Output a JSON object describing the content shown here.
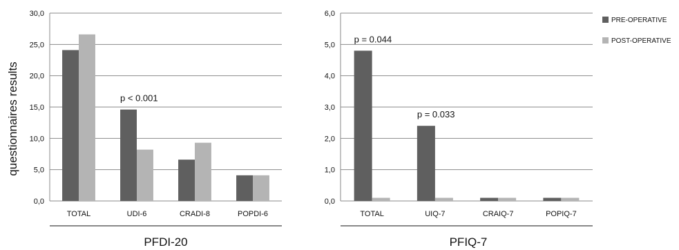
{
  "ylabel": "questionnaires results",
  "colors": {
    "pre": "#5f5f5f",
    "post": "#b4b4b4",
    "grid": "#8a8a8a"
  },
  "legend": [
    "PRE-OPERATIVE",
    "POST-OPERATIVE"
  ],
  "chart_data": [
    {
      "type": "bar",
      "group_label": "PFDI-20",
      "categories": [
        "TOTAL",
        "UDI-6",
        "CRADI-8",
        "POPDI-6"
      ],
      "series": [
        {
          "name": "PRE-OPERATIVE",
          "values": [
            24.1,
            14.6,
            6.6,
            4.1
          ]
        },
        {
          "name": "POST-OPERATIVE",
          "values": [
            26.6,
            8.2,
            9.3,
            4.1
          ]
        }
      ],
      "ylim": [
        0,
        30
      ],
      "yticks": [
        "0,0",
        "5,0",
        "10,0",
        "15,0",
        "20,0",
        "25,0",
        "30,0"
      ],
      "annotations": [
        {
          "text": "p < 0.001",
          "category": "UDI-6"
        }
      ],
      "grid": true
    },
    {
      "type": "bar",
      "group_label": "PFIQ-7",
      "categories": [
        "TOTAL",
        "UIQ-7",
        "CRAIQ-7",
        "POPIQ-7"
      ],
      "series": [
        {
          "name": "PRE-OPERATIVE",
          "values": [
            4.8,
            2.4,
            0.1,
            0.1
          ]
        },
        {
          "name": "POST-OPERATIVE",
          "values": [
            0.1,
            0.1,
            0.1,
            0.1
          ]
        }
      ],
      "ylim": [
        0,
        6
      ],
      "yticks": [
        "0,0",
        "1,0",
        "2,0",
        "3,0",
        "4,0",
        "5,0",
        "6,0"
      ],
      "annotations": [
        {
          "text": "p = 0.044",
          "category": "TOTAL"
        },
        {
          "text": "p = 0.033",
          "category": "UIQ-7"
        }
      ],
      "grid": true,
      "legend": "top-right"
    }
  ]
}
